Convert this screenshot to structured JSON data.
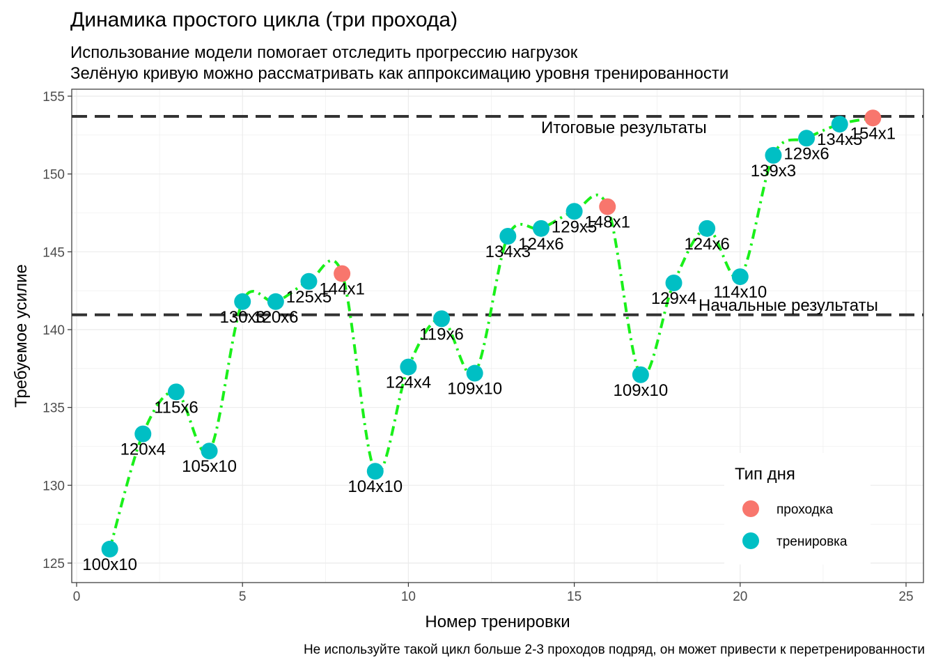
{
  "title": "Динамика простого цикла (три прохода)",
  "subtitle_line1": "Использование модели помогает отследить прогрессию нагрузок",
  "subtitle_line2": "Зелёную кривую можно рассматривать как аппроксимацию уровня тренированности",
  "caption": "Не используйте такой цикл больше 2-3 проходов подряд, он может привести к перетренированности",
  "colors": {
    "probe": "#F8766D",
    "training": "#00BFC4",
    "curve": "#1AF01A",
    "hline": "#333333"
  },
  "chart_data": {
    "type": "scatter",
    "xlabel": "Номер тренировки",
    "ylabel": "Требуемое усилие",
    "xlim": [
      0,
      25
    ],
    "ylim": [
      125,
      155
    ],
    "x_ticks": [
      0,
      5,
      10,
      15,
      20,
      25
    ],
    "y_ticks": [
      125,
      130,
      135,
      140,
      145,
      150,
      155
    ],
    "grid": true,
    "legend": {
      "title": "Тип дня",
      "position": "bottom-right",
      "entries": [
        {
          "label": "проходка",
          "color": "#F8766D"
        },
        {
          "label": "тренировка",
          "color": "#00BFC4"
        }
      ]
    },
    "hlines": [
      {
        "y": 153.7,
        "label": "Итоговые результаты"
      },
      {
        "y": 140.95,
        "label": "Начальные результаты"
      }
    ],
    "points": [
      {
        "x": 1,
        "y": 125.9,
        "label": "100x10",
        "type": "тренировка"
      },
      {
        "x": 2,
        "y": 133.3,
        "label": "120x4",
        "type": "тренировка"
      },
      {
        "x": 3,
        "y": 136.0,
        "label": "115x6",
        "type": "тренировка"
      },
      {
        "x": 4,
        "y": 132.2,
        "label": "105x10",
        "type": "тренировка"
      },
      {
        "x": 5,
        "y": 141.8,
        "label": "130x3",
        "type": "тренировка"
      },
      {
        "x": 6,
        "y": 141.8,
        "label": "120x6",
        "type": "тренировка"
      },
      {
        "x": 7,
        "y": 143.1,
        "label": "125x5",
        "type": "тренировка"
      },
      {
        "x": 8,
        "y": 143.6,
        "label": "144x1",
        "type": "проходка"
      },
      {
        "x": 9,
        "y": 130.9,
        "label": "104x10",
        "type": "тренировка"
      },
      {
        "x": 10,
        "y": 137.6,
        "label": "124x4",
        "type": "тренировка"
      },
      {
        "x": 11,
        "y": 140.7,
        "label": "119x6",
        "type": "тренировка"
      },
      {
        "x": 12,
        "y": 137.2,
        "label": "109x10",
        "type": "тренировка"
      },
      {
        "x": 13,
        "y": 146.0,
        "label": "134x3",
        "type": "тренировка"
      },
      {
        "x": 14,
        "y": 146.5,
        "label": "124x6",
        "type": "тренировка"
      },
      {
        "x": 15,
        "y": 147.6,
        "label": "129x5",
        "type": "тренировка"
      },
      {
        "x": 16,
        "y": 147.9,
        "label": "148x1",
        "type": "проходка"
      },
      {
        "x": 17,
        "y": 137.1,
        "label": "109x10",
        "type": "тренировка"
      },
      {
        "x": 18,
        "y": 143.0,
        "label": "129x4",
        "type": "тренировка"
      },
      {
        "x": 19,
        "y": 146.5,
        "label": "124x6",
        "type": "тренировка"
      },
      {
        "x": 20,
        "y": 143.4,
        "label": "114x10",
        "type": "тренировка"
      },
      {
        "x": 21,
        "y": 151.2,
        "label": "139x3",
        "type": "тренировка"
      },
      {
        "x": 22,
        "y": 152.3,
        "label": "129x6",
        "type": "тренировка"
      },
      {
        "x": 23,
        "y": 153.2,
        "label": "134x5",
        "type": "тренировка"
      },
      {
        "x": 24,
        "y": 153.6,
        "label": "154x1",
        "type": "проходка"
      }
    ]
  }
}
